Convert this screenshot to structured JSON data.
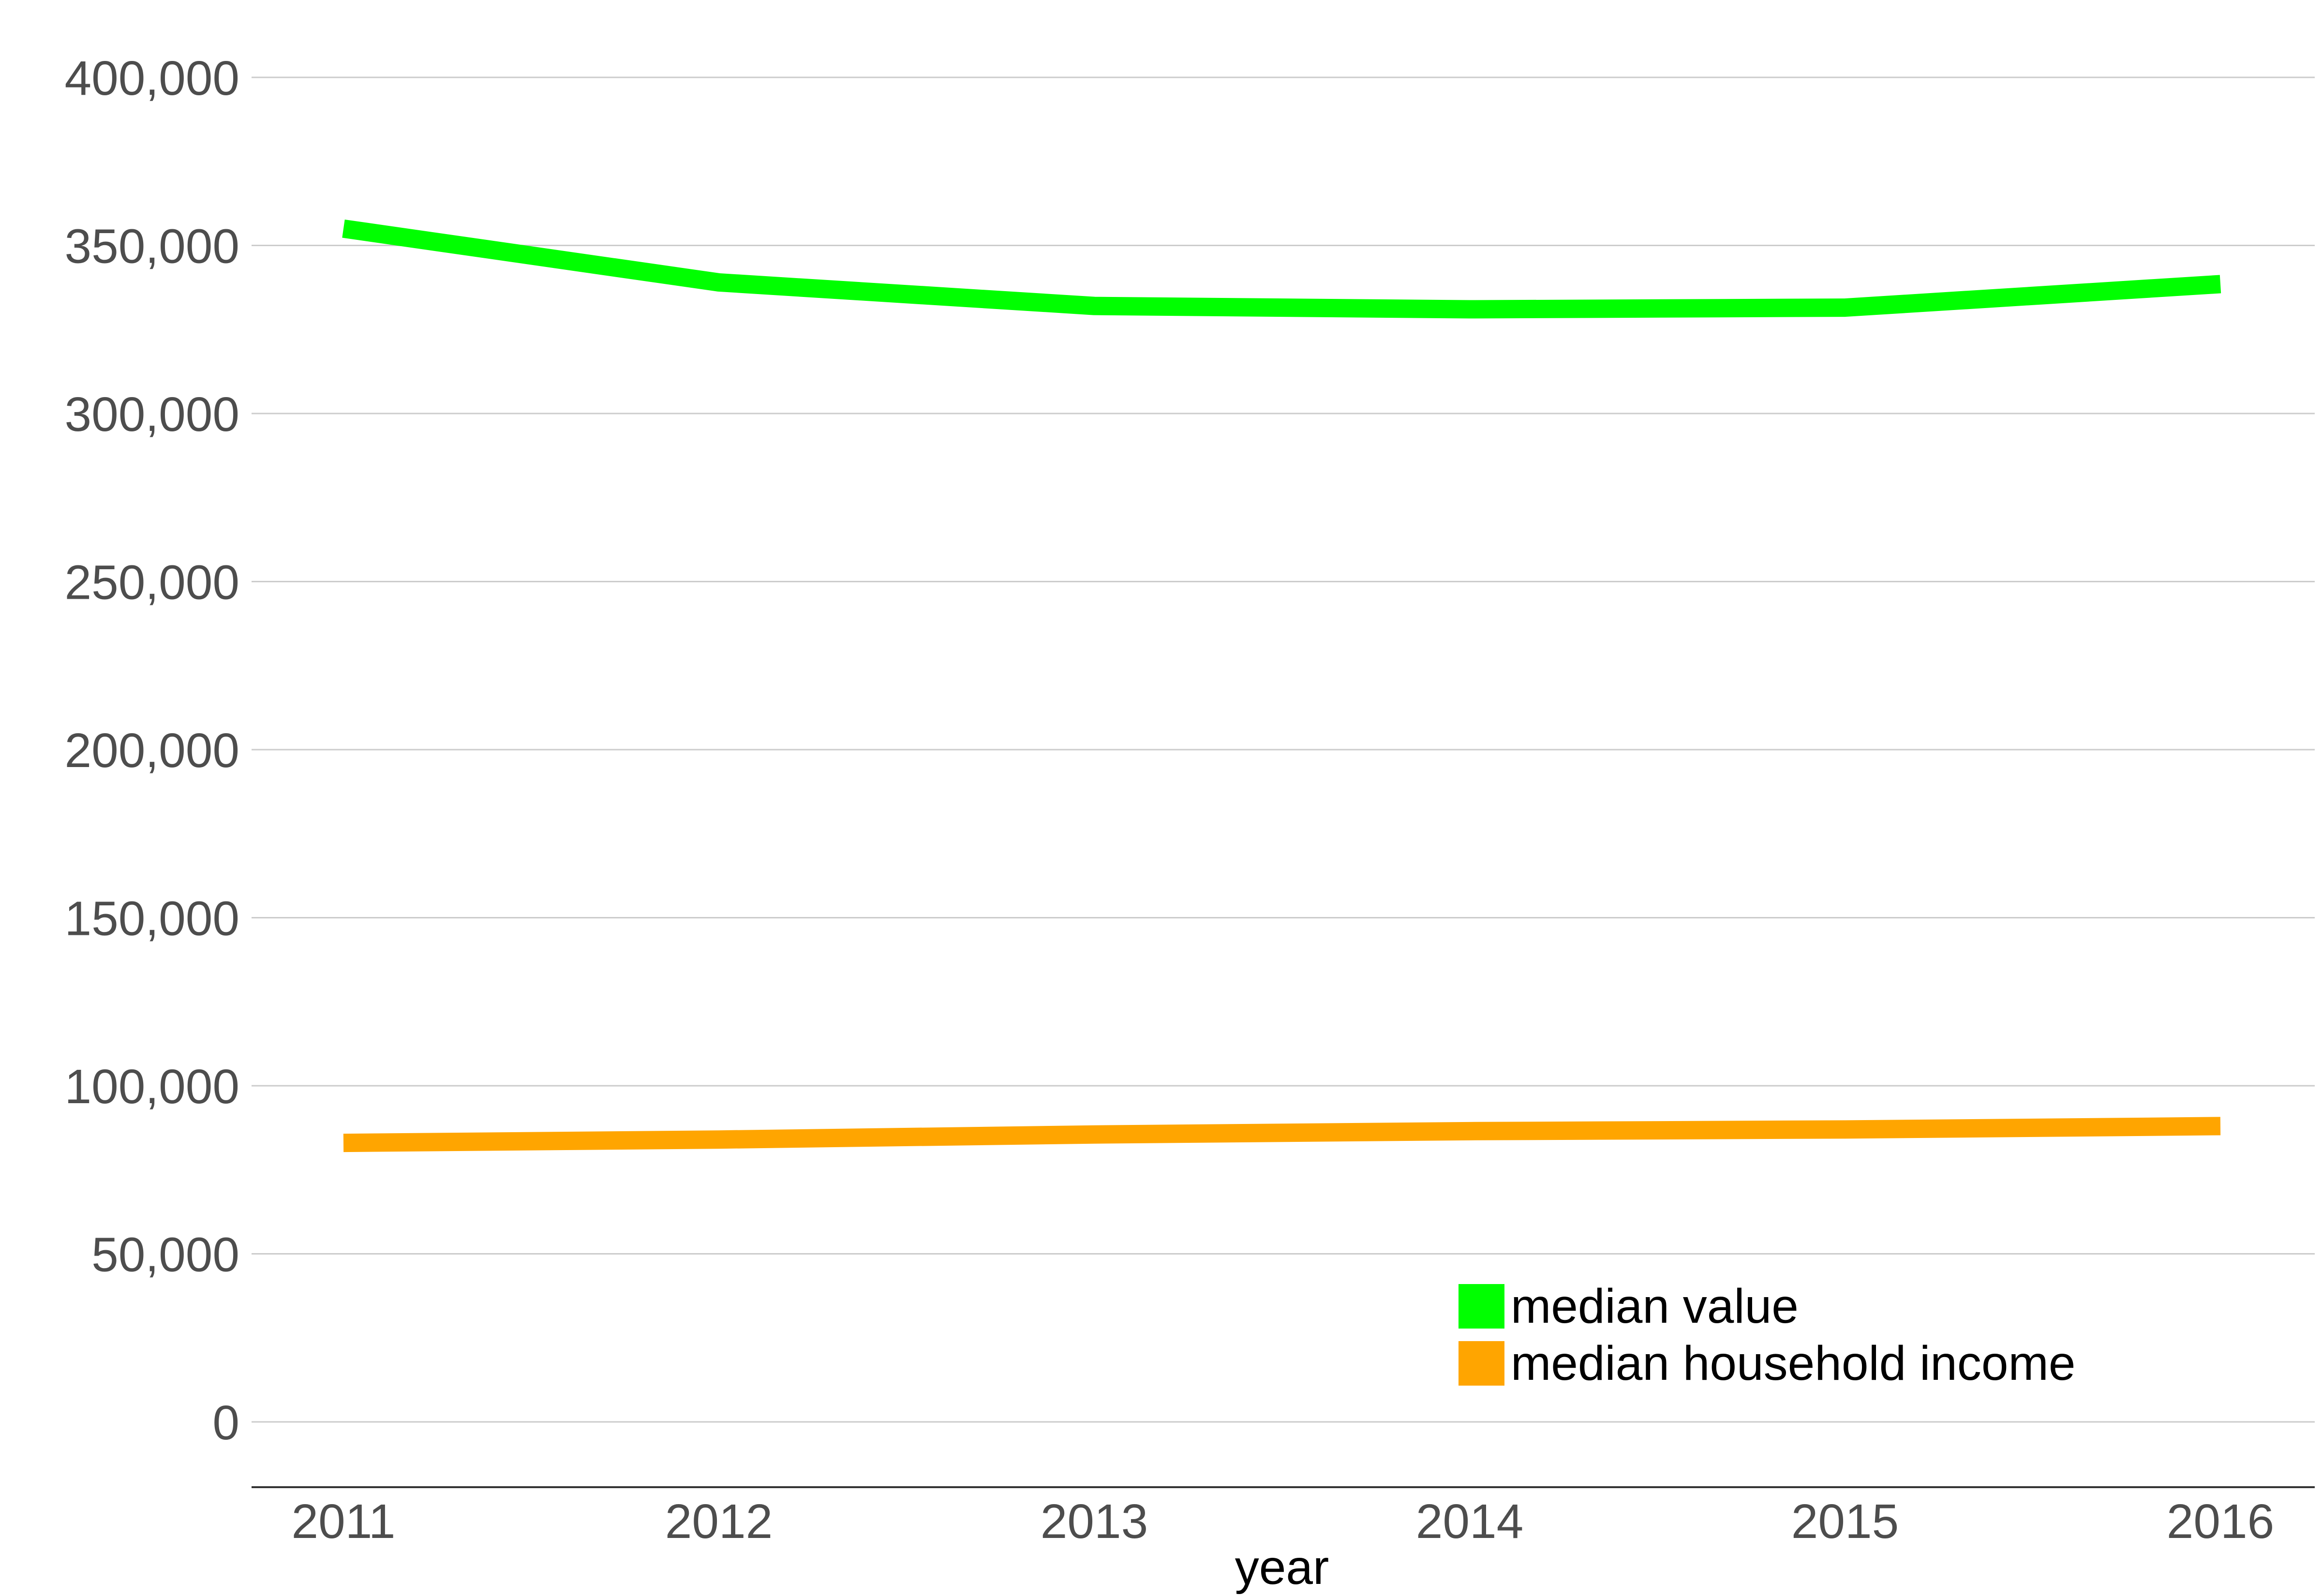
{
  "chart_data": {
    "type": "line",
    "xlabel": "year",
    "ylabel": "",
    "x": [
      "2011",
      "2012",
      "2013",
      "2014",
      "2015",
      "2016"
    ],
    "ylim": [
      -20000,
      400000
    ],
    "yticks": [
      0,
      50000,
      100000,
      150000,
      200000,
      250000,
      300000,
      350000,
      400000
    ],
    "ytick_labels": [
      "0",
      "50,000",
      "100,000",
      "150,000",
      "200,000",
      "250,000",
      "300,000",
      "350,000",
      "400,000"
    ],
    "grid": true,
    "legend_position": "bottom-right",
    "series": [
      {
        "name": "median value",
        "color": "#00ff00",
        "values": [
          355000,
          339000,
          332000,
          331000,
          331500,
          338500
        ]
      },
      {
        "name": "median household income",
        "color": "#ffa500",
        "values": [
          83000,
          84000,
          85500,
          86500,
          87000,
          88000
        ]
      }
    ]
  }
}
